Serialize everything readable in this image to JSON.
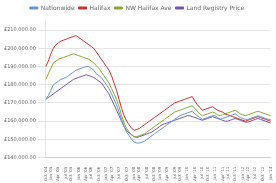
{
  "chart_data": {
    "type": "line",
    "categories": [
      "Oct\n'04",
      null,
      "Jan\n'05",
      null,
      null,
      "Apr\n'05",
      null,
      null,
      "Jul\n'05",
      null,
      "Oct\n'05",
      null,
      null,
      "Jan\n'06",
      null,
      null,
      "Apr\n'06",
      null,
      "Jul\n'06",
      null,
      null,
      "Oct\n'06",
      null,
      null,
      "Jan\n'07",
      null,
      "Apr\n'07",
      null,
      null,
      "Jul\n'07",
      null,
      null,
      "Oct\n'07",
      null,
      null,
      "Jan\n'08",
      null,
      "Apr\n'08",
      null,
      null,
      "Jul\n'08",
      null,
      null,
      "Oct\n'08",
      null,
      "Jan\n'09",
      null,
      null,
      "Apr\n'09",
      null,
      null,
      "Jul\n'09",
      null,
      "Oct\n'09",
      null,
      null,
      "Jan\n'10",
      null,
      null,
      "Apr\n'10",
      null,
      null,
      "Jul\n'10",
      null,
      "Oct\n'10",
      null,
      null,
      "Jan\n'11",
      null,
      null,
      "Apr\n'11",
      null,
      "Jul\n'11",
      null,
      null,
      "Oct\n'11",
      null,
      null,
      "Jan\n'12",
      null,
      "Apr\n'12",
      null,
      null,
      "Jul\n'12",
      null,
      null,
      "Oct\n'12",
      null,
      null,
      "Jan\n'13"
    ],
    "series": [
      {
        "name": "Nationwide",
        "color": "#6699cc",
        "values": [
          172000,
          174000,
          177000,
          180000,
          181000,
          182000,
          183000,
          183500,
          184000,
          185000,
          186000,
          187000,
          188000,
          188500,
          189000,
          189500,
          190000,
          190000,
          189000,
          188000,
          186000,
          185000,
          184000,
          182000,
          180000,
          178000,
          175000,
          172000,
          169000,
          165000,
          161000,
          157000,
          154000,
          152000,
          150000,
          148500,
          148000,
          148000,
          148500,
          149000,
          150000,
          151000,
          152000,
          153000,
          154000,
          155000,
          156000,
          157000,
          158000,
          159000,
          160000,
          161000,
          162000,
          163000,
          163500,
          164000,
          164500,
          165000,
          165500,
          164000,
          163000,
          162000,
          161000,
          161500,
          162000,
          162500,
          163000,
          163000,
          162000,
          161000,
          161500,
          162000,
          162500,
          163000,
          163500,
          164000,
          163000,
          162000,
          161500,
          161000,
          161000,
          161500,
          162000,
          162500,
          163000,
          162500,
          162000,
          161500,
          161000,
          161000
        ]
      },
      {
        "name": "Halifax",
        "color": "#cc3333",
        "values": [
          190000,
          193000,
          197000,
          200000,
          202000,
          203000,
          204000,
          204500,
          205000,
          205500,
          206000,
          206500,
          207000,
          206000,
          205000,
          204000,
          203000,
          202000,
          201000,
          200000,
          198000,
          196000,
          194000,
          192000,
          190000,
          188000,
          185000,
          181000,
          177000,
          172000,
          167000,
          163000,
          160000,
          158000,
          156000,
          155000,
          155500,
          156000,
          157000,
          158000,
          159000,
          160000,
          161000,
          162000,
          163000,
          164000,
          165000,
          166000,
          167000,
          168000,
          169000,
          170000,
          170500,
          171000,
          171500,
          172000,
          172500,
          173000,
          173500,
          171000,
          169000,
          167500,
          166000,
          166500,
          167000,
          167500,
          168000,
          167000,
          166000,
          165500,
          165000,
          164000,
          163500,
          163000,
          162500,
          162000,
          161500,
          161000,
          160500,
          160000,
          160500,
          161000,
          161500,
          162000,
          162500,
          162000,
          161500,
          161000,
          160500,
          160000
        ]
      },
      {
        "name": "NW Halifax Ave",
        "color": "#88aa33",
        "values": [
          183000,
          186000,
          189000,
          192000,
          193000,
          194000,
          194500,
          195000,
          195500,
          196000,
          196500,
          197000,
          196500,
          196000,
          195500,
          195000,
          194500,
          194000,
          193000,
          192000,
          190500,
          189000,
          187000,
          185000,
          183000,
          181000,
          178000,
          175000,
          172000,
          168000,
          163000,
          159000,
          156000,
          154000,
          152500,
          151500,
          151500,
          152000,
          152500,
          153000,
          154000,
          155000,
          156000,
          157000,
          158000,
          159000,
          160000,
          161000,
          162000,
          163000,
          164000,
          165000,
          165500,
          166000,
          166500,
          167000,
          167500,
          168000,
          168500,
          167000,
          165500,
          164000,
          163000,
          163500,
          164000,
          164500,
          165000,
          164500,
          163500,
          163000,
          163500,
          164000,
          164500,
          165000,
          165500,
          166000,
          165000,
          164000,
          163500,
          163000,
          163500,
          164000,
          164500,
          165000,
          165500,
          165000,
          164500,
          164000,
          163500,
          163000
        ]
      },
      {
        "name": "Land Registry Price",
        "color": "#7755aa",
        "values": [
          172000,
          173000,
          174000,
          175000,
          176000,
          177000,
          178000,
          179000,
          180000,
          181000,
          182000,
          183000,
          183500,
          184000,
          184500,
          185000,
          185500,
          185000,
          184500,
          184000,
          183000,
          182000,
          181000,
          179000,
          177000,
          175000,
          172000,
          169000,
          166000,
          163000,
          160000,
          157000,
          155000,
          153500,
          152500,
          151500,
          151000,
          151500,
          152000,
          152500,
          153000,
          153500,
          154000,
          155000,
          156000,
          157000,
          158000,
          158500,
          159000,
          159500,
          160000,
          160500,
          161000,
          161500,
          162000,
          162500,
          163000,
          163000,
          162500,
          162000,
          161500,
          161000,
          160500,
          161000,
          161500,
          162000,
          162500,
          162000,
          161500,
          161000,
          160500,
          160000,
          160000,
          160500,
          161000,
          161500,
          161000,
          160500,
          160000,
          159500,
          159500,
          160000,
          160500,
          161000,
          161500,
          161000,
          160500,
          160000,
          159500,
          159000
        ]
      }
    ],
    "ylim": [
      140000,
      215000
    ],
    "yticks": [
      {
        "value": 140000,
        "label": "£140,000.00"
      },
      {
        "value": 150000,
        "label": "£150,000.00"
      },
      {
        "value": 160000,
        "label": "£160,000.00"
      },
      {
        "value": 170000,
        "label": "£170,000.00"
      },
      {
        "value": 180000,
        "label": "£180,000.00"
      },
      {
        "value": 190000,
        "label": "£190,000.00"
      },
      {
        "value": 200000,
        "label": "£200,000.00"
      },
      {
        "value": 210000,
        "label": "£210,000.00"
      }
    ],
    "grid": true,
    "legend": "top"
  }
}
